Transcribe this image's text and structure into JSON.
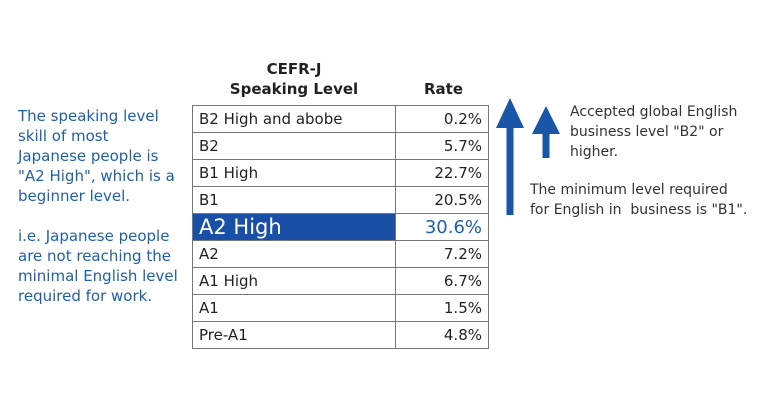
{
  "left_note": {
    "paragraphs": [
      [
        "The speaking level",
        "skill of most",
        "Japanese people is",
        "\"A2 High\", which is a",
        "beginner level."
      ],
      [
        "i.e. Japanese people",
        "are not reaching the",
        "minimal English level",
        "required for work."
      ]
    ]
  },
  "table": {
    "header": {
      "level": [
        "CEFR-J",
        "Speaking Level"
      ],
      "rate": "Rate"
    },
    "rows": [
      [
        "B2 High and abobe",
        "0.2%"
      ],
      [
        "B2",
        "5.7%"
      ],
      [
        "B1 High",
        "22.7%"
      ],
      [
        "B1",
        "20.5%"
      ],
      [
        "A2 High",
        "30.6%"
      ],
      [
        "A2",
        "7.2%"
      ],
      [
        "A1 High",
        "6.7%"
      ],
      [
        "A1",
        "1.5%"
      ],
      [
        "Pre-A1",
        "4.8%"
      ]
    ],
    "highlight_row": 4
  },
  "right_notes": [
    [
      "Accepted global English",
      "business level \"B2\" or",
      "higher."
    ],
    [
      "The minimum level required",
      "for English in  business is \"B1\"."
    ]
  ]
}
